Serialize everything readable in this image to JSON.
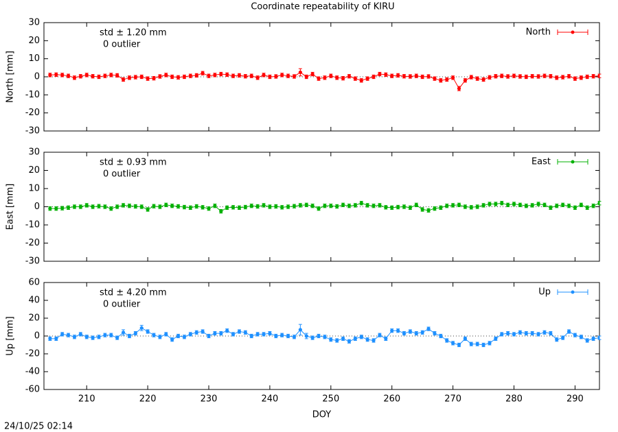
{
  "title": "Coordinate repeatability of KIRU",
  "timestamp": "24/10/25 02:14",
  "chart_data": [
    {
      "type": "line",
      "ylabel": "North [mm]",
      "std_label": "std ± 1.20 mm",
      "outlier_label": "0 outlier",
      "xlim": [
        203,
        294
      ],
      "xticks": [
        210,
        220,
        230,
        240,
        250,
        260,
        270,
        280,
        290
      ],
      "ylim": [
        -30,
        30
      ],
      "yticks": [
        -30,
        -20,
        -10,
        0,
        10,
        20,
        30
      ],
      "x": [
        204,
        205,
        206,
        207,
        208,
        209,
        210,
        211,
        212,
        213,
        214,
        215,
        216,
        217,
        218,
        219,
        220,
        221,
        222,
        223,
        224,
        225,
        226,
        227,
        228,
        229,
        230,
        231,
        232,
        233,
        234,
        235,
        236,
        237,
        238,
        239,
        240,
        241,
        242,
        243,
        244,
        245,
        246,
        247,
        248,
        249,
        250,
        251,
        252,
        253,
        254,
        255,
        256,
        257,
        258,
        259,
        260,
        261,
        262,
        263,
        264,
        265,
        266,
        267,
        268,
        269,
        270,
        271,
        272,
        273,
        274,
        275,
        276,
        277,
        278,
        279,
        280,
        281,
        282,
        283,
        284,
        285,
        286,
        287,
        288,
        289,
        290,
        291,
        292,
        293,
        294
      ],
      "series": [
        {
          "name": "North",
          "color": "#ff0000",
          "values": [
            1,
            1.2,
            1,
            0.5,
            -0.5,
            0.3,
            1,
            0.3,
            0,
            0.5,
            1,
            0.8,
            -1.5,
            -0.5,
            -0.2,
            0,
            -1,
            -0.8,
            0.2,
            1,
            0,
            -0.3,
            0,
            0.5,
            0.8,
            2,
            0.5,
            1,
            1.5,
            1.2,
            0.5,
            0.8,
            0.3,
            0.5,
            -0.5,
            1,
            0,
            0.2,
            1,
            0.5,
            0.2,
            2.5,
            0,
            1.5,
            -1,
            -0.5,
            0.5,
            -0.5,
            -0.8,
            0.3,
            -1,
            -2,
            -1,
            0,
            1.5,
            1.2,
            0.5,
            0.8,
            0.3,
            0.2,
            0.5,
            0,
            0.2,
            -1,
            -2,
            -1.5,
            -0.5,
            -6.5,
            -2,
            -0.2,
            -1,
            -1.5,
            -0.3,
            0.3,
            0.5,
            0.2,
            0.5,
            0.2,
            0,
            0.3,
            0.2,
            0.5,
            0.3,
            -0.5,
            -0.2,
            0.3,
            -1,
            -0.5,
            0,
            0.3,
            0.5
          ],
          "errors": [
            1,
            1,
            1,
            1,
            1,
            1,
            1,
            1,
            1,
            1,
            1,
            1,
            1,
            1,
            1,
            1,
            1,
            1,
            1,
            1,
            1,
            1,
            1,
            1,
            1,
            1,
            1,
            1,
            1,
            1,
            1,
            1,
            1,
            1,
            1,
            1,
            1,
            1,
            1,
            1,
            1,
            2,
            1,
            1,
            1,
            1,
            1,
            1,
            1,
            1,
            1,
            1,
            1,
            1,
            1,
            1,
            1,
            1,
            1,
            1,
            1,
            1,
            1,
            1,
            1,
            1,
            1,
            1.2,
            1,
            1,
            1,
            1,
            1,
            1,
            1,
            1,
            1,
            1,
            1,
            1,
            1,
            1,
            1,
            1,
            1,
            1,
            1,
            1,
            1,
            1,
            1
          ]
        }
      ]
    },
    {
      "type": "line",
      "ylabel": "East [mm]",
      "std_label": "std ± 0.93 mm",
      "outlier_label": "0 outlier",
      "xlim": [
        203,
        294
      ],
      "xticks": [
        210,
        220,
        230,
        240,
        250,
        260,
        270,
        280,
        290
      ],
      "ylim": [
        -30,
        30
      ],
      "yticks": [
        -30,
        -20,
        -10,
        0,
        10,
        20,
        30
      ],
      "x": [
        204,
        205,
        206,
        207,
        208,
        209,
        210,
        211,
        212,
        213,
        214,
        215,
        216,
        217,
        218,
        219,
        220,
        221,
        222,
        223,
        224,
        225,
        226,
        227,
        228,
        229,
        230,
        231,
        232,
        233,
        234,
        235,
        236,
        237,
        238,
        239,
        240,
        241,
        242,
        243,
        244,
        245,
        246,
        247,
        248,
        249,
        250,
        251,
        252,
        253,
        254,
        255,
        256,
        257,
        258,
        259,
        260,
        261,
        262,
        263,
        264,
        265,
        266,
        267,
        268,
        269,
        270,
        271,
        272,
        273,
        274,
        275,
        276,
        277,
        278,
        279,
        280,
        281,
        282,
        283,
        284,
        285,
        286,
        287,
        288,
        289,
        290,
        291,
        292,
        293,
        294
      ],
      "series": [
        {
          "name": "East",
          "color": "#00b000",
          "values": [
            -1,
            -1,
            -0.8,
            -0.5,
            0,
            0,
            0.8,
            0,
            0.3,
            0,
            -1,
            0,
            0.8,
            0.5,
            0.2,
            0,
            -1.5,
            0.3,
            0,
            1,
            0.5,
            0.2,
            -0.2,
            -0.5,
            0.2,
            -0.3,
            -1,
            0.5,
            -2.5,
            -0.5,
            -0.3,
            -0.5,
            -0.2,
            0.5,
            0.2,
            0.8,
            0,
            0.2,
            -0.3,
            0,
            0.3,
            0.8,
            1,
            0.5,
            -1,
            0.5,
            0.5,
            0.2,
            1,
            0.5,
            0.8,
            2,
            0.8,
            0.5,
            0.8,
            -0.3,
            -0.5,
            -0.2,
            0,
            -0.5,
            1,
            -1.5,
            -2,
            -1,
            -0.5,
            0.5,
            0.8,
            1,
            0,
            -0.3,
            0,
            0.8,
            1.5,
            1.5,
            2,
            1,
            1.5,
            1,
            0.5,
            0.8,
            1.5,
            1,
            -0.5,
            0.5,
            1,
            0.5,
            -0.5,
            1,
            -0.5,
            0.5,
            2
          ],
          "errors": [
            1,
            1,
            1,
            1,
            1,
            1,
            1,
            1,
            1,
            1,
            1,
            1,
            1,
            1,
            1,
            1,
            1,
            1,
            1,
            1,
            1,
            1,
            1,
            1,
            1,
            1,
            1,
            1,
            1,
            1,
            1,
            1,
            1,
            1,
            1,
            1,
            1,
            1,
            1,
            1,
            1,
            1,
            1,
            1,
            1,
            1,
            1,
            1,
            1,
            1,
            1,
            1,
            1,
            1,
            1,
            1,
            1,
            1,
            1,
            1,
            1,
            1,
            1,
            1,
            1,
            1,
            1,
            1,
            1,
            1,
            1,
            1,
            1,
            1,
            1,
            1,
            1,
            1,
            1,
            1,
            1,
            1,
            1,
            1,
            1,
            1,
            1,
            1,
            1,
            1,
            1
          ]
        }
      ]
    },
    {
      "type": "line",
      "ylabel": "Up [mm]",
      "std_label": "std ± 4.20 mm",
      "outlier_label": "0 outlier",
      "xlabel": "DOY",
      "xlim": [
        203,
        294
      ],
      "xticks": [
        210,
        220,
        230,
        240,
        250,
        260,
        270,
        280,
        290
      ],
      "ylim": [
        -60,
        60
      ],
      "yticks": [
        -60,
        -40,
        -20,
        0,
        20,
        40,
        60
      ],
      "x": [
        204,
        205,
        206,
        207,
        208,
        209,
        210,
        211,
        212,
        213,
        214,
        215,
        216,
        217,
        218,
        219,
        220,
        221,
        222,
        223,
        224,
        225,
        226,
        227,
        228,
        229,
        230,
        231,
        232,
        233,
        234,
        235,
        236,
        237,
        238,
        239,
        240,
        241,
        242,
        243,
        244,
        245,
        246,
        247,
        248,
        249,
        250,
        251,
        252,
        253,
        254,
        255,
        256,
        257,
        258,
        259,
        260,
        261,
        262,
        263,
        264,
        265,
        266,
        267,
        268,
        269,
        270,
        271,
        272,
        273,
        274,
        275,
        276,
        277,
        278,
        279,
        280,
        281,
        282,
        283,
        284,
        285,
        286,
        287,
        288,
        289,
        290,
        291,
        292,
        293,
        294
      ],
      "series": [
        {
          "name": "Up",
          "color": "#1e90ff",
          "values": [
            -3,
            -3,
            2,
            1,
            -1,
            2,
            -1,
            -2,
            -1,
            1,
            1,
            -2,
            4,
            0,
            3,
            9,
            5,
            1,
            -1,
            2,
            -4,
            0,
            -1,
            2,
            4,
            5,
            0,
            3,
            3,
            6,
            2,
            5,
            4,
            0,
            2,
            2,
            3,
            0,
            1,
            0,
            -1,
            7,
            0,
            -2,
            0,
            -1,
            -4,
            -5,
            -3,
            -6,
            -3,
            -1,
            -4,
            -5,
            1,
            -3,
            6,
            6,
            3,
            5,
            3,
            4,
            8,
            3,
            0,
            -5,
            -8,
            -10,
            -3,
            -9,
            -9,
            -10,
            -8,
            -3,
            2,
            3,
            2,
            4,
            3,
            3,
            2,
            4,
            3,
            -4,
            -2,
            5,
            1,
            -1,
            -5,
            -3,
            -2
          ],
          "errors": [
            2,
            2,
            2,
            2,
            2,
            2,
            2,
            2,
            2,
            2,
            2,
            2,
            3,
            2,
            2,
            3,
            2,
            2,
            2,
            2,
            2,
            2,
            2,
            2,
            2,
            2,
            2,
            2,
            2,
            2,
            2,
            2,
            2,
            2,
            2,
            2,
            2,
            2,
            2,
            2,
            2,
            6,
            3,
            2,
            2,
            2,
            2,
            2,
            2,
            2,
            2,
            2,
            2,
            2,
            2,
            2,
            2,
            2,
            2,
            2,
            2,
            2,
            2,
            2,
            2,
            2,
            2,
            2,
            2,
            2,
            2,
            2,
            2,
            2,
            2,
            2,
            2,
            2,
            2,
            2,
            2,
            2,
            2,
            2,
            2,
            2,
            2,
            2,
            2,
            2,
            2
          ]
        }
      ]
    }
  ]
}
